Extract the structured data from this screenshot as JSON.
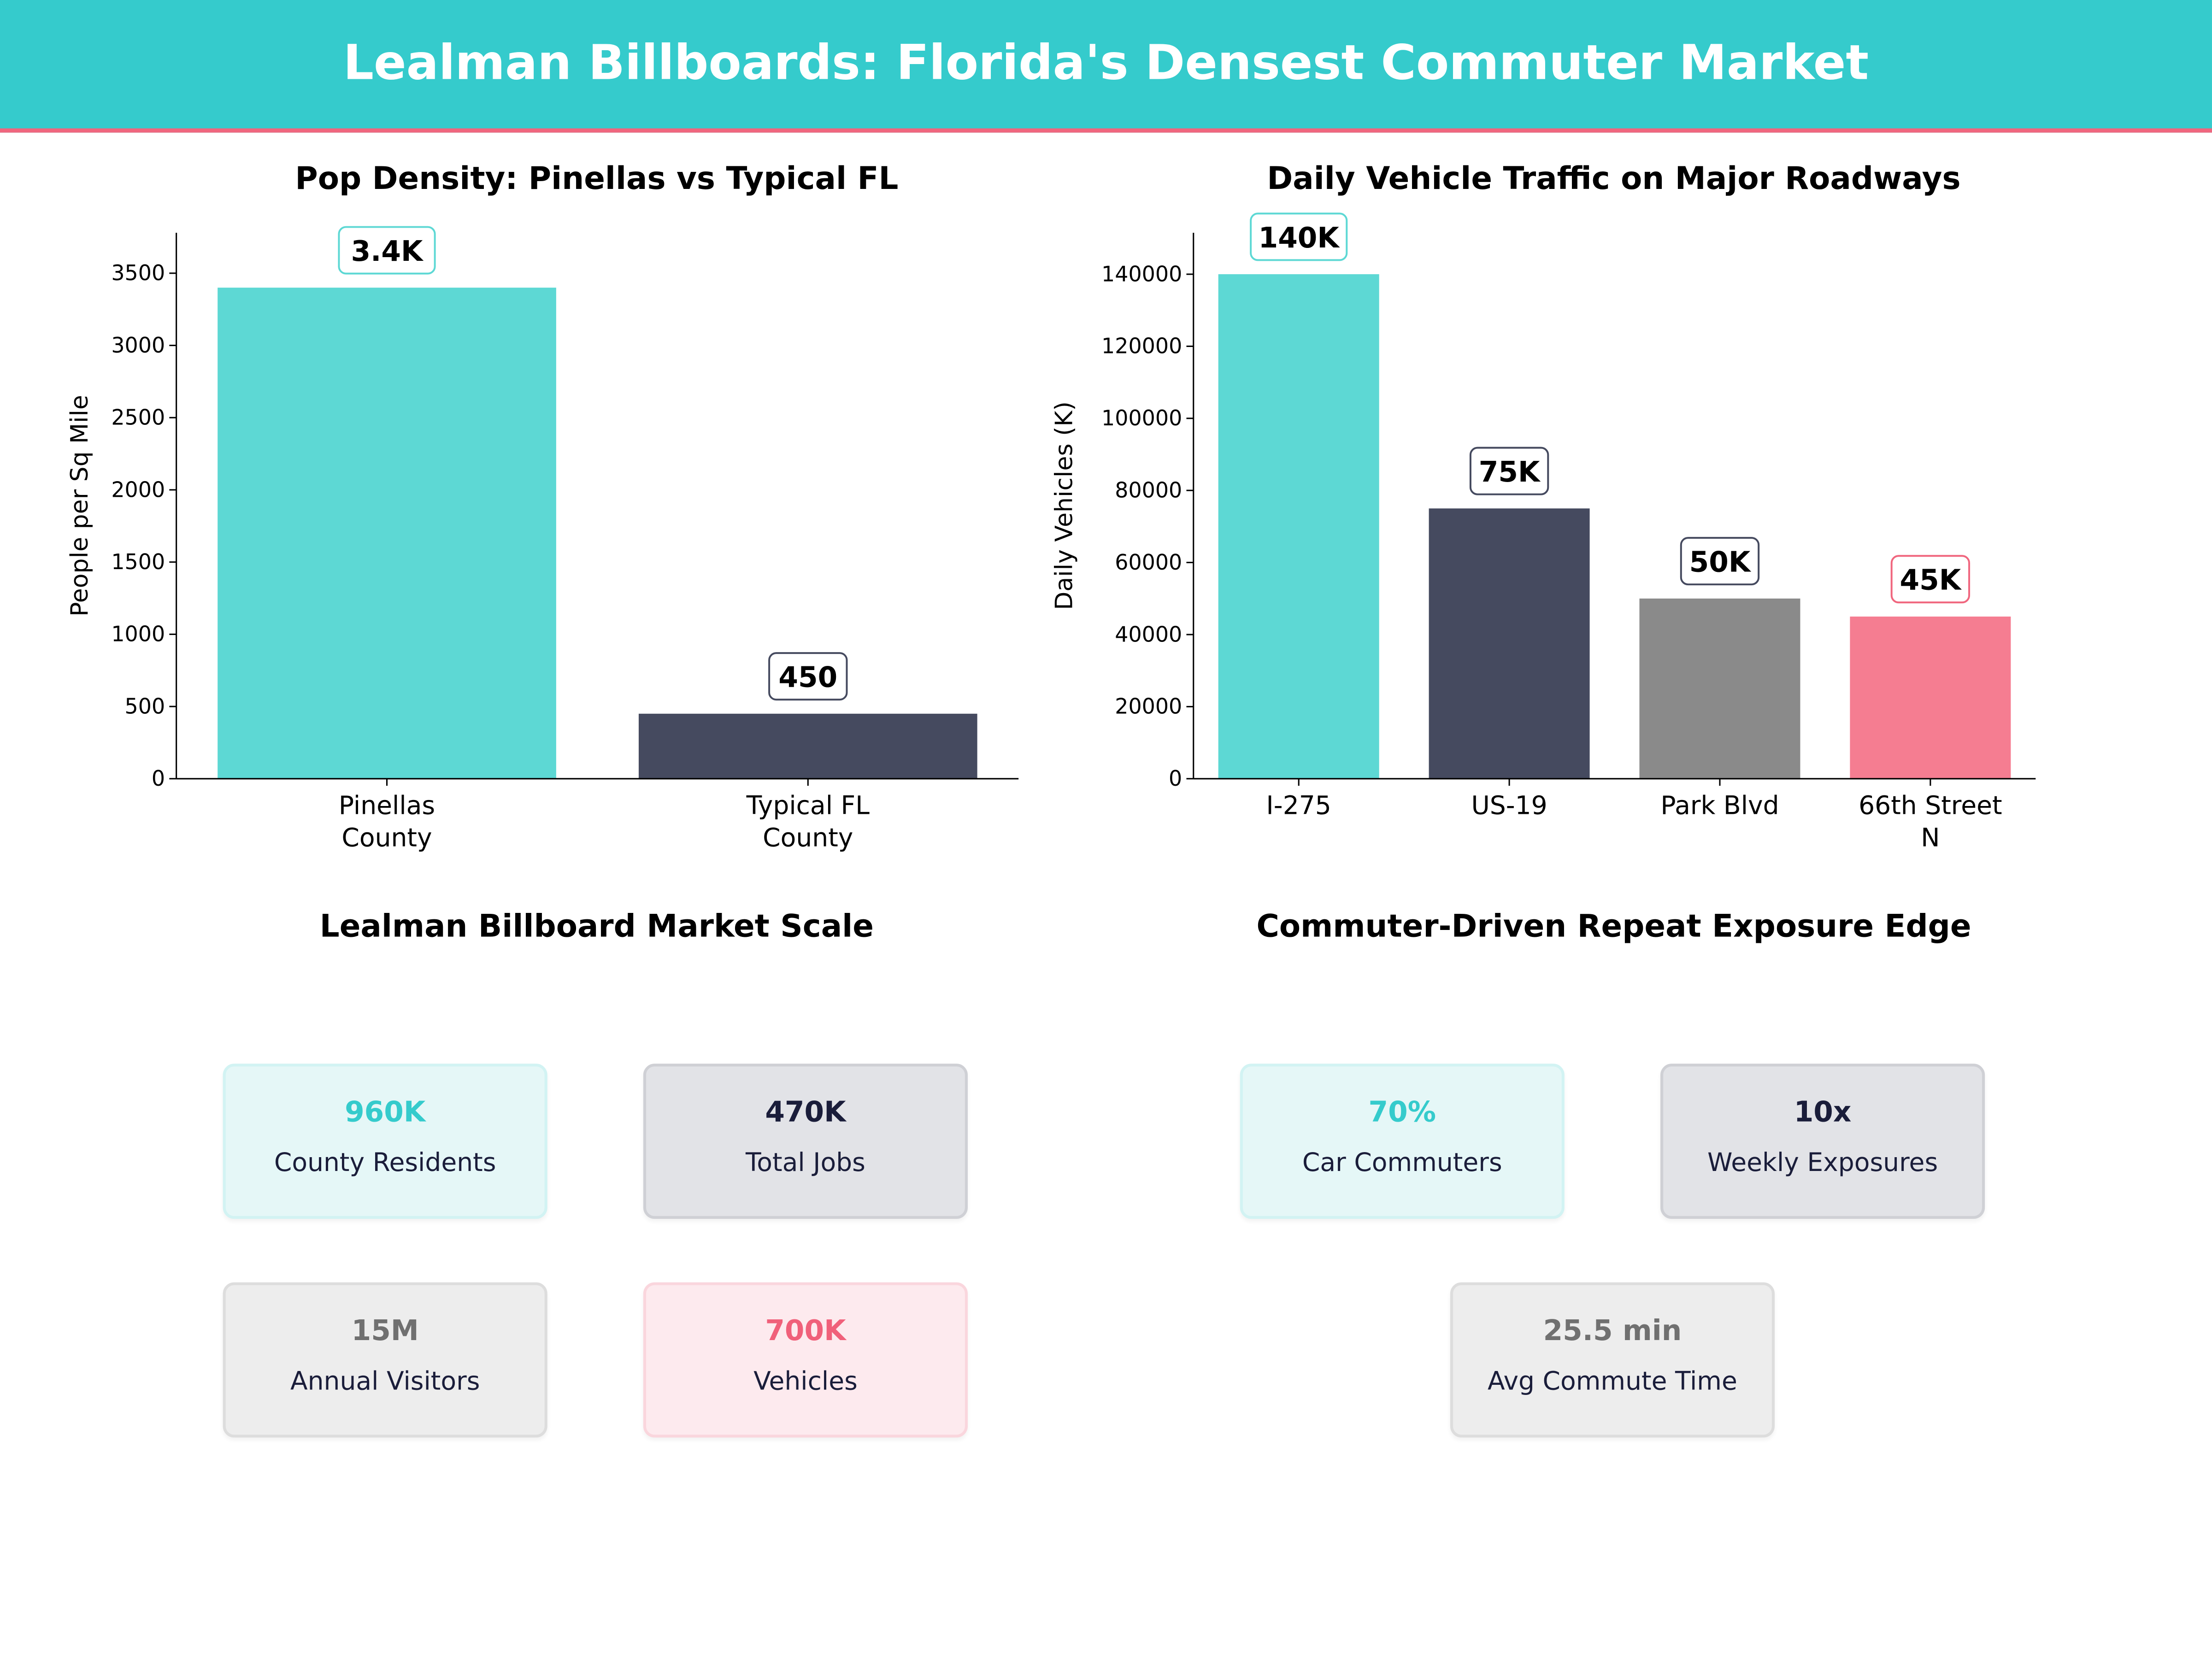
{
  "header": {
    "title": "Lealman Billboards: Florida's Densest Commuter Market"
  },
  "chart_data": [
    {
      "type": "bar",
      "title": "Pop Density: Pinellas vs Typical FL",
      "xlabel": "",
      "ylabel": "People per Sq Mile",
      "categories": [
        "Pinellas\nCounty",
        "Typical FL\nCounty"
      ],
      "values": [
        3400,
        450
      ],
      "data_labels": [
        "3.4K",
        "450"
      ],
      "colors": [
        "#5dd8d4",
        "#454a5f"
      ],
      "label_borders": [
        "#5dd8d4",
        "#454a5f"
      ],
      "ylim": [
        0,
        3780
      ],
      "yticks": [
        0,
        500,
        1000,
        1500,
        2000,
        2500,
        3000,
        3500
      ],
      "grid": false
    },
    {
      "type": "bar",
      "title": "Daily Vehicle Traffic on Major Roadways",
      "xlabel": "",
      "ylabel": "Daily Vehicles (K)",
      "categories": [
        "I-275",
        "US-19",
        "Park Blvd",
        "66th Street\nN"
      ],
      "values": [
        140000,
        75000,
        50000,
        45000
      ],
      "data_labels": [
        "140K",
        "75K",
        "50K",
        "45K"
      ],
      "colors": [
        "#5dd8d4",
        "#454a5f",
        "#8a8a8a",
        "#f57d91"
      ],
      "label_borders": [
        "#5dd8d4",
        "#454a5f",
        "#454a5f",
        "#f0667e"
      ],
      "ylim": [
        0,
        151500
      ],
      "yticks": [
        0,
        20000,
        40000,
        60000,
        80000,
        100000,
        120000,
        140000
      ],
      "grid": false
    }
  ],
  "market": {
    "title": "Lealman Billboard Market Scale",
    "cards": [
      {
        "value": "960K",
        "label": "County Residents",
        "color": "#35cbcc",
        "bg": "#e5f7f7",
        "border": "#d2f3f3"
      },
      {
        "value": "470K",
        "label": "Total Jobs",
        "color": "#1a1d3a",
        "bg": "#e2e3e7",
        "border": "#cfd0d5"
      },
      {
        "value": "15M",
        "label": "Annual Visitors",
        "color": "#707070",
        "bg": "#ededed",
        "border": "#dddddd"
      },
      {
        "value": "700K",
        "label": "Vehicles",
        "color": "#f0607a",
        "bg": "#fdeaee",
        "border": "#fad6dd"
      }
    ]
  },
  "exposure": {
    "title": "Commuter-Driven Repeat Exposure Edge",
    "cards": [
      {
        "value": "70%",
        "label": "Car Commuters",
        "color": "#35cbcc",
        "bg": "#e5f7f7",
        "border": "#d2f3f3"
      },
      {
        "value": "10x",
        "label": "Weekly Exposures",
        "color": "#1a1d3a",
        "bg": "#e2e3e7",
        "border": "#cfd0d5"
      },
      {
        "value": "25.5 min",
        "label": "Avg Commute Time",
        "color": "#707070",
        "bg": "#ededed",
        "border": "#dddddd"
      }
    ]
  }
}
